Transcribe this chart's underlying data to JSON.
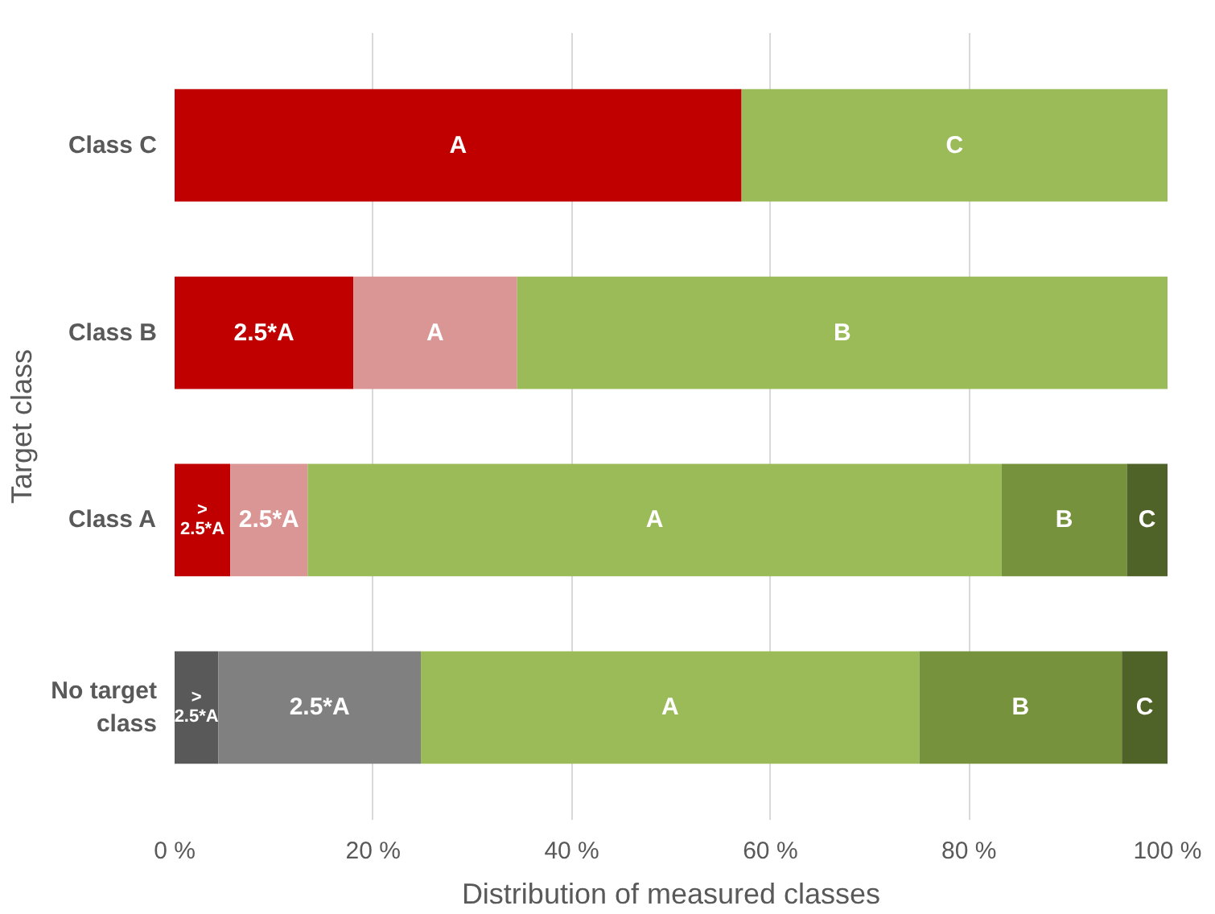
{
  "chart_data": {
    "type": "bar",
    "orientation": "horizontal",
    "stacked": true,
    "xlabel": "Distribution of measured classes",
    "ylabel": "Target class",
    "categories": [
      "Class C",
      "Class B",
      "Class A",
      "No target class"
    ],
    "xlim": [
      0,
      100
    ],
    "xticks": [
      {
        "value": 0,
        "label": "0 %"
      },
      {
        "value": 20,
        "label": "20 %"
      },
      {
        "value": 40,
        "label": "40 %"
      },
      {
        "value": 60,
        "label": "60 %"
      },
      {
        "value": 80,
        "label": "80 %"
      },
      {
        "value": 100,
        "label": "100 %"
      }
    ],
    "grid": "x",
    "legend": false,
    "series": [
      {
        "name": "> 2.5*A",
        "values": [
          null,
          null,
          5.6,
          4.4
        ],
        "colors": [
          null,
          null,
          "#c00000",
          "#595959"
        ]
      },
      {
        "name": "2.5*A",
        "values": [
          null,
          18.0,
          7.8,
          20.4
        ],
        "colors": [
          null,
          "#c00000",
          "#da9694",
          "#808080"
        ]
      },
      {
        "name": "A",
        "values": [
          57.1,
          16.5,
          69.9,
          50.2
        ],
        "colors": [
          "#c00000",
          "#da9694",
          "#9bbb59",
          "#9bbb59"
        ]
      },
      {
        "name": "B",
        "values": [
          null,
          65.5,
          12.6,
          20.4
        ],
        "colors": [
          null,
          "#9bbb59",
          "#76923c",
          "#76923c"
        ]
      },
      {
        "name": "C",
        "values": [
          42.9,
          null,
          4.1,
          4.6
        ],
        "colors": [
          "#9bbb59",
          null,
          "#4f6228",
          "#4f6228"
        ]
      }
    ]
  }
}
